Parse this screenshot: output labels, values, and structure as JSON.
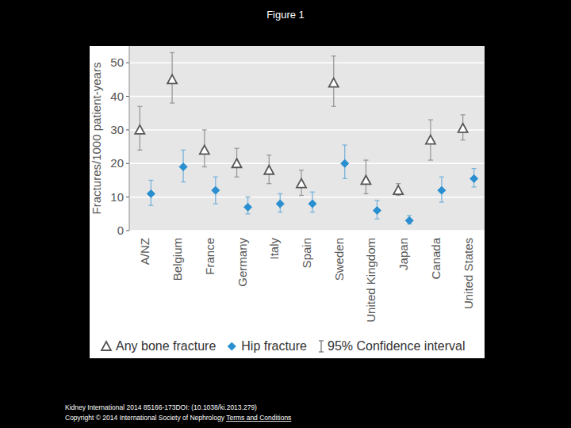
{
  "header": {
    "title": "Figure 1"
  },
  "chart_data": {
    "type": "scatter",
    "y_label": "Fractures/1000 patient-years",
    "categories": [
      "A/NZ",
      "Belgium",
      "France",
      "Germany",
      "Italy",
      "Spain",
      "Sweden",
      "United Kingdom",
      "Japan",
      "Canada",
      "United States"
    ],
    "series": [
      {
        "name": "Any bone fracture",
        "color": "#555555",
        "marker": "triangle",
        "values": [
          30,
          45,
          24,
          20,
          18,
          14,
          44,
          15,
          12,
          27,
          30.5
        ],
        "ci_low": [
          24,
          38,
          19,
          16,
          14,
          10.5,
          37,
          11,
          10.5,
          21,
          27
        ],
        "ci_high": [
          37,
          53,
          30,
          24.5,
          22.5,
          18,
          52,
          21,
          14,
          33,
          34.5
        ]
      },
      {
        "name": "Hip fracture",
        "color": "#2a8fd0",
        "marker": "diamond",
        "values": [
          11,
          19,
          12,
          7,
          8,
          8,
          20,
          6,
          3,
          12,
          15.5
        ],
        "ci_low": [
          7.5,
          14.5,
          8,
          5,
          5.5,
          5.5,
          15.5,
          3.5,
          2,
          8.5,
          13
        ],
        "ci_high": [
          15,
          24,
          16,
          10,
          11,
          11.5,
          25.5,
          9,
          4.5,
          16,
          18.5
        ]
      }
    ],
    "error_bar_label": "95% Confidence interval",
    "ylim": [
      0,
      55
    ],
    "yticks": [
      0,
      10,
      20,
      30,
      40,
      50
    ],
    "grid": true,
    "legend": "bottom"
  },
  "footer": {
    "lines": [
      [
        "Kidney International 2014 85166-173DOI: (10.1038/ki.2013.279)"
      ],
      [
        "Copyright © 2014 International Society of Nephrology ",
        "Terms and Conditions"
      ]
    ]
  }
}
